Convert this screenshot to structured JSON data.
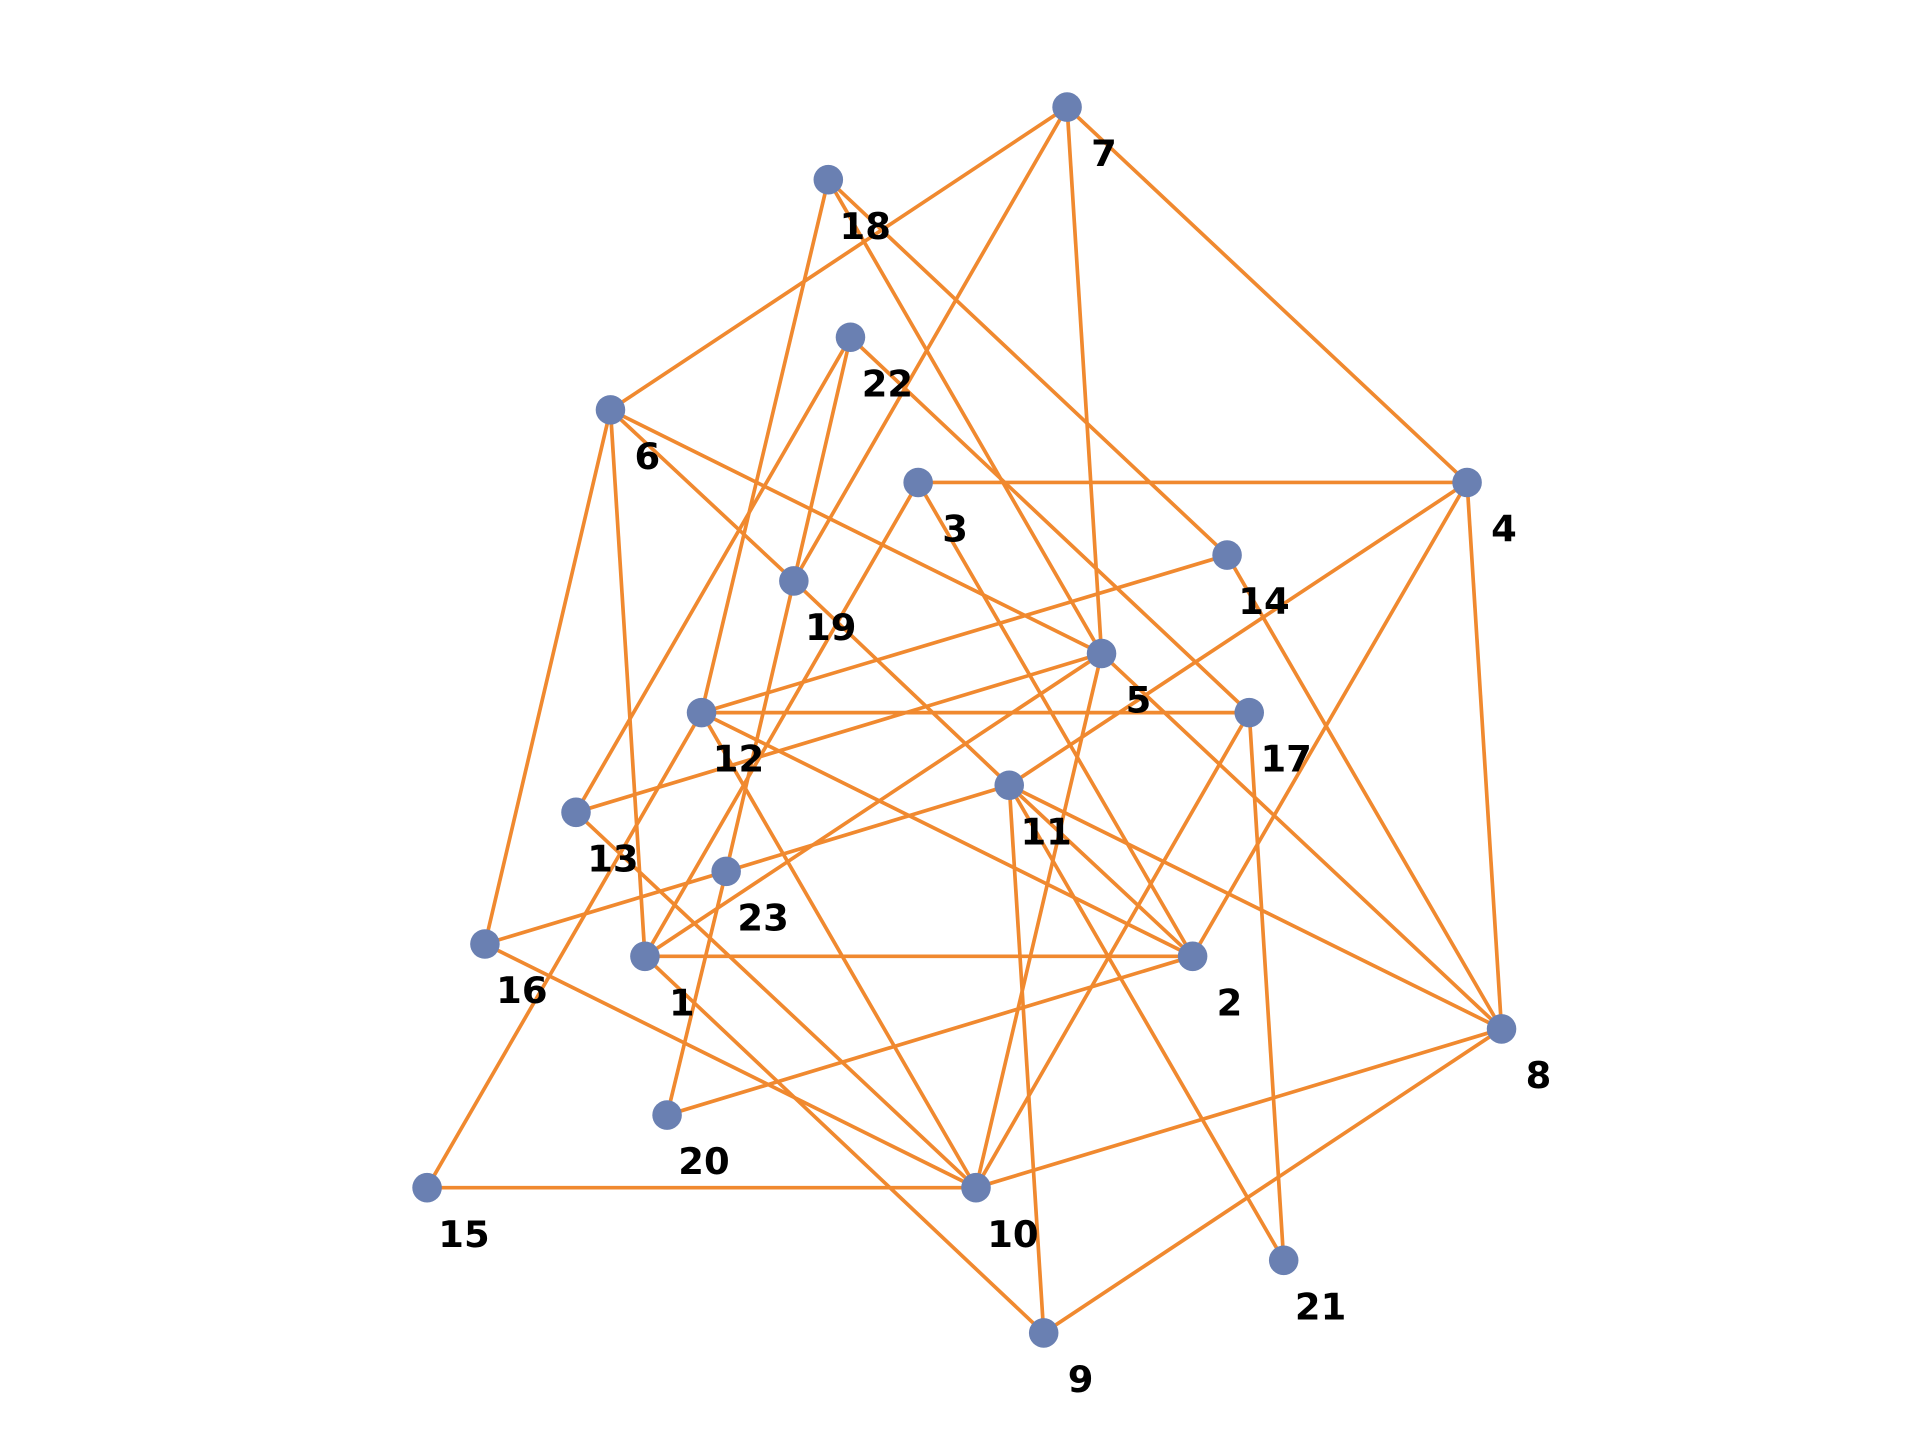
{
  "colors": {
    "edge": "#f0892f",
    "node": "#6a80b2",
    "label": "#000000",
    "background": "#ffffff"
  },
  "nodes": [
    "1",
    "2",
    "3",
    "4",
    "5",
    "6",
    "7",
    "8",
    "9",
    "10",
    "11",
    "12",
    "13",
    "14",
    "15",
    "16",
    "17",
    "18",
    "19",
    "20",
    "21",
    "22",
    "23"
  ],
  "edges": [
    [
      "7",
      "6"
    ],
    [
      "7",
      "19"
    ],
    [
      "7",
      "5"
    ],
    [
      "7",
      "4"
    ],
    [
      "18",
      "12"
    ],
    [
      "18",
      "5"
    ],
    [
      "18",
      "14"
    ],
    [
      "22",
      "19"
    ],
    [
      "22",
      "13"
    ],
    [
      "22",
      "17"
    ],
    [
      "6",
      "16"
    ],
    [
      "6",
      "1"
    ],
    [
      "6",
      "19"
    ],
    [
      "19",
      "11"
    ],
    [
      "6",
      "5"
    ],
    [
      "3",
      "4"
    ],
    [
      "3",
      "1"
    ],
    [
      "3",
      "2"
    ],
    [
      "4",
      "11"
    ],
    [
      "4",
      "2"
    ],
    [
      "4",
      "8"
    ],
    [
      "14",
      "12"
    ],
    [
      "14",
      "8"
    ],
    [
      "19",
      "23"
    ],
    [
      "23",
      "20"
    ],
    [
      "5",
      "13"
    ],
    [
      "5",
      "1"
    ],
    [
      "5",
      "10"
    ],
    [
      "5",
      "8"
    ],
    [
      "12",
      "17"
    ],
    [
      "12",
      "15"
    ],
    [
      "12",
      "10"
    ],
    [
      "12",
      "2"
    ],
    [
      "17",
      "10"
    ],
    [
      "17",
      "21"
    ],
    [
      "16",
      "23"
    ],
    [
      "23",
      "11"
    ],
    [
      "11",
      "2"
    ],
    [
      "11",
      "8"
    ],
    [
      "11",
      "9"
    ],
    [
      "11",
      "21"
    ],
    [
      "13",
      "10"
    ],
    [
      "16",
      "10"
    ],
    [
      "1",
      "2"
    ],
    [
      "1",
      "9"
    ],
    [
      "2",
      "20"
    ],
    [
      "8",
      "10"
    ],
    [
      "8",
      "9"
    ],
    [
      "15",
      "10"
    ]
  ]
}
